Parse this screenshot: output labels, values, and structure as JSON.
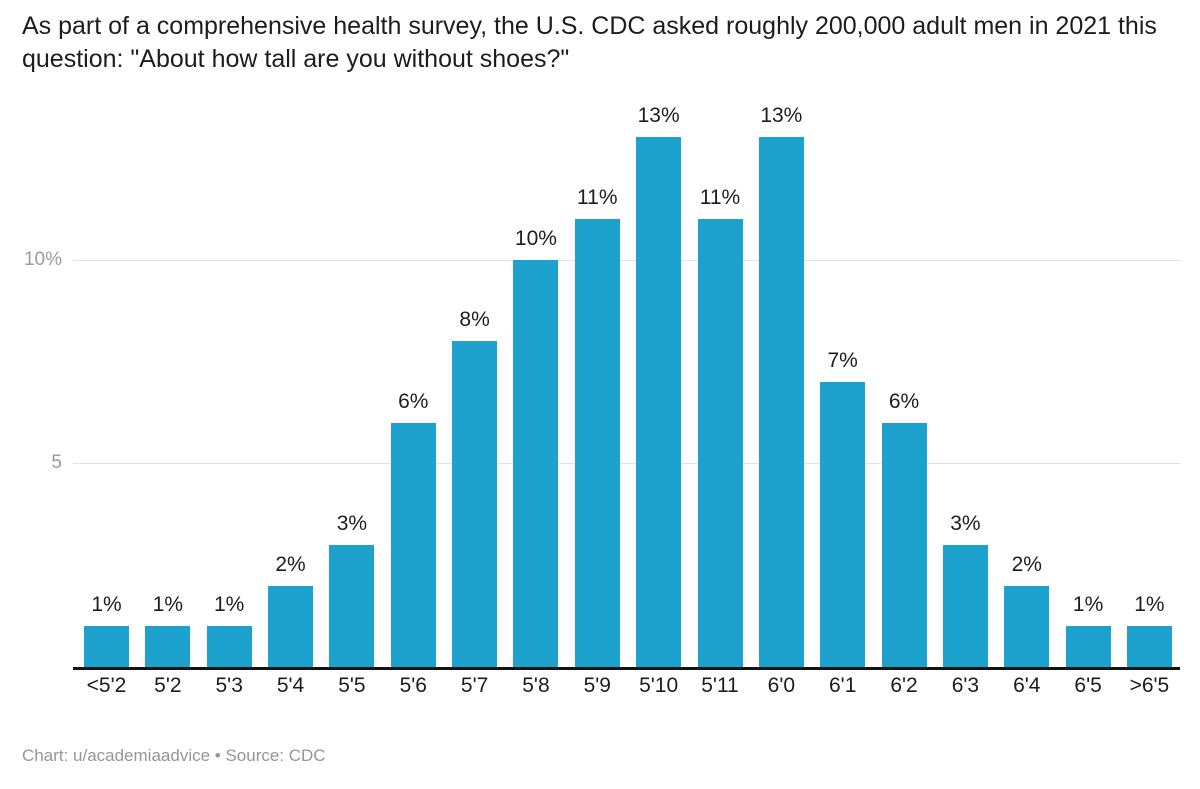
{
  "header": {
    "title": "As part of a comprehensive health survey, the U.S. CDC asked roughly 200,000 adult men in 2021 this question: \"About how tall are you without shoes?\""
  },
  "footer": {
    "credit": "Chart: u/academiaadvice • Source: CDC"
  },
  "colors": {
    "bar": "#1ca2cc",
    "axis_line": "#141414",
    "gridline": "#e2e2e2",
    "y_tick_label": "#9b9b9b",
    "label_text": "#1d1d1d",
    "credit_text": "#969696",
    "background": "#ffffff"
  },
  "chart_data": {
    "type": "bar",
    "title": "As part of a comprehensive health survey, the U.S. CDC asked roughly 200,000 adult men in 2021 this question: \"About how tall are you without shoes?\"",
    "categories": [
      "<5'2",
      "5'2",
      "5'3",
      "5'4",
      "5'5",
      "5'6",
      "5'7",
      "5'8",
      "5'9",
      "5'10",
      "5'11",
      "6'0",
      "6'1",
      "6'2",
      "6'3",
      "6'4",
      "6'5",
      ">6'5"
    ],
    "values": [
      1,
      1,
      1,
      2,
      3,
      6,
      8,
      10,
      11,
      13,
      11,
      13,
      7,
      6,
      3,
      2,
      1,
      1
    ],
    "value_labels": [
      "1%",
      "1%",
      "1%",
      "2%",
      "3%",
      "6%",
      "8%",
      "10%",
      "11%",
      "13%",
      "11%",
      "13%",
      "7%",
      "6%",
      "3%",
      "2%",
      "1%",
      "1%"
    ],
    "xlabel": "",
    "ylabel": "",
    "y_ticks": [
      {
        "value": 5,
        "label": "5"
      },
      {
        "value": 10,
        "label": "10%"
      }
    ],
    "ylim": [
      0,
      13.7
    ],
    "grid": true,
    "legend": "none",
    "bar_color": "#1ca2cc"
  }
}
